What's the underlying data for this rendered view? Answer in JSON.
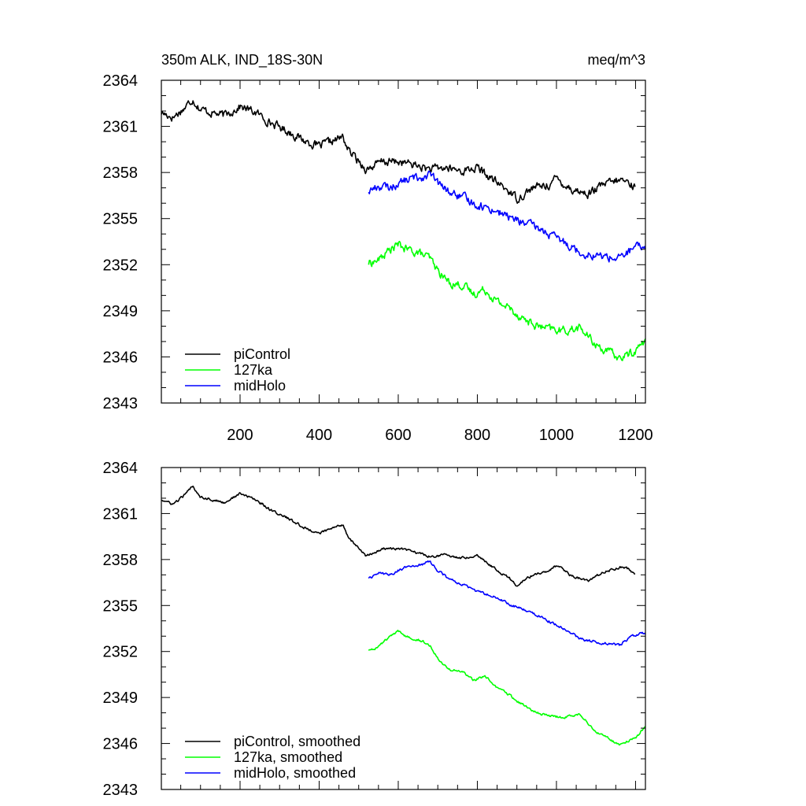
{
  "figure": {
    "left_title": "350m ALK, IND_18S-30N",
    "right_title": "meq/m^3"
  },
  "colors": {
    "piControl": "#000000",
    "127ka": "#00ff00",
    "midHolo": "#0000ff",
    "axis": "#000000"
  },
  "chart_data": [
    {
      "type": "line",
      "title": "350m ALK, IND_18S-30N",
      "units": "meq/m^3",
      "xlim": [
        1,
        1225
      ],
      "ylim": [
        2343,
        2364
      ],
      "xticks": [
        200,
        400,
        600,
        800,
        1000,
        1200
      ],
      "xtick_labels": [
        "200",
        "400",
        "600",
        "800",
        "1000",
        "1200"
      ],
      "yticks": [
        2343,
        2346,
        2349,
        2352,
        2355,
        2358,
        2361,
        2364
      ],
      "ytick_labels": [
        "2343",
        "2346",
        "2349",
        "2352",
        "2355",
        "2358",
        "2361",
        "2364"
      ],
      "legend_position": "lower-left",
      "noise": 0.45,
      "series": [
        {
          "name": "piControl",
          "color": "#000000",
          "x": [
            1,
            30,
            60,
            80,
            100,
            130,
            160,
            200,
            240,
            280,
            320,
            360,
            400,
            420,
            440,
            460,
            475,
            490,
            520,
            560,
            600,
            640,
            680,
            720,
            760,
            800,
            840,
            880,
            900,
            940,
            980,
            1000,
            1040,
            1080,
            1120,
            1160,
            1180,
            1200
          ],
          "y": [
            2361.9,
            2361.6,
            2362.2,
            2362.8,
            2362.1,
            2361.9,
            2361.7,
            2362.3,
            2361.9,
            2361.2,
            2360.7,
            2360.1,
            2359.7,
            2359.9,
            2360.1,
            2360.3,
            2359.4,
            2359.0,
            2358.2,
            2358.7,
            2358.7,
            2358.5,
            2358.2,
            2358.3,
            2358.1,
            2358.3,
            2357.5,
            2356.8,
            2356.3,
            2357.0,
            2357.2,
            2357.6,
            2356.9,
            2356.6,
            2357.2,
            2357.5,
            2357.4,
            2357.0
          ]
        },
        {
          "name": "127ka",
          "color": "#00ff00",
          "x": [
            525,
            550,
            580,
            600,
            620,
            650,
            680,
            700,
            730,
            760,
            790,
            820,
            850,
            880,
            900,
            940,
            980,
            1020,
            1060,
            1080,
            1100,
            1140,
            1160,
            1200,
            1225
          ],
          "y": [
            2352.1,
            2352.3,
            2353.0,
            2353.3,
            2353.0,
            2352.8,
            2352.4,
            2351.6,
            2350.8,
            2350.7,
            2350.1,
            2350.4,
            2349.6,
            2349.2,
            2348.8,
            2348.1,
            2347.8,
            2347.7,
            2347.9,
            2347.3,
            2346.8,
            2346.2,
            2345.9,
            2346.4,
            2347.1
          ]
        },
        {
          "name": "midHolo",
          "color": "#0000ff",
          "x": [
            525,
            550,
            580,
            600,
            630,
            660,
            680,
            700,
            730,
            760,
            800,
            840,
            880,
            920,
            960,
            1000,
            1040,
            1060,
            1080,
            1100,
            1130,
            1160,
            1180,
            1200,
            1225
          ],
          "y": [
            2356.8,
            2357.1,
            2357.0,
            2357.3,
            2357.6,
            2357.7,
            2357.9,
            2357.3,
            2356.7,
            2356.4,
            2355.9,
            2355.6,
            2355.1,
            2354.7,
            2354.3,
            2353.7,
            2353.2,
            2352.8,
            2352.7,
            2352.6,
            2352.5,
            2352.4,
            2352.8,
            2353.1,
            2353.2
          ]
        }
      ]
    },
    {
      "type": "line",
      "title": "",
      "xlim": [
        1,
        1225
      ],
      "ylim": [
        2343,
        2364
      ],
      "xticks": [
        200,
        400,
        600,
        800,
        1000,
        1200
      ],
      "xtick_labels": [],
      "yticks": [
        2343,
        2346,
        2349,
        2352,
        2355,
        2358,
        2361,
        2364
      ],
      "ytick_labels": [
        "2343",
        "2346",
        "2349",
        "2352",
        "2355",
        "2358",
        "2361",
        "2364"
      ],
      "legend_position": "lower-left",
      "noise": 0.14,
      "series": [
        {
          "name": "piControl, smoothed",
          "color": "#000000",
          "x": [
            1,
            30,
            60,
            80,
            100,
            130,
            160,
            200,
            240,
            280,
            320,
            360,
            400,
            420,
            440,
            460,
            475,
            490,
            520,
            560,
            600,
            640,
            680,
            720,
            760,
            800,
            840,
            880,
            900,
            940,
            980,
            1000,
            1040,
            1080,
            1120,
            1160,
            1180,
            1200
          ],
          "y": [
            2361.9,
            2361.6,
            2362.2,
            2362.8,
            2362.1,
            2361.9,
            2361.7,
            2362.3,
            2361.9,
            2361.2,
            2360.7,
            2360.1,
            2359.7,
            2359.9,
            2360.1,
            2360.3,
            2359.4,
            2359.0,
            2358.2,
            2358.7,
            2358.7,
            2358.5,
            2358.2,
            2358.3,
            2358.1,
            2358.3,
            2357.5,
            2356.8,
            2356.3,
            2357.0,
            2357.2,
            2357.6,
            2356.9,
            2356.6,
            2357.2,
            2357.5,
            2357.4,
            2357.0
          ]
        },
        {
          "name": "127ka, smoothed",
          "color": "#00ff00",
          "x": [
            525,
            550,
            580,
            600,
            620,
            650,
            680,
            700,
            730,
            760,
            790,
            820,
            850,
            880,
            900,
            940,
            980,
            1020,
            1060,
            1080,
            1100,
            1140,
            1160,
            1200,
            1225
          ],
          "y": [
            2352.1,
            2352.3,
            2353.0,
            2353.3,
            2353.0,
            2352.8,
            2352.4,
            2351.6,
            2350.8,
            2350.7,
            2350.1,
            2350.4,
            2349.6,
            2349.2,
            2348.8,
            2348.1,
            2347.8,
            2347.7,
            2347.9,
            2347.3,
            2346.8,
            2346.2,
            2345.9,
            2346.4,
            2347.1
          ]
        },
        {
          "name": "midHolo, smoothed",
          "color": "#0000ff",
          "x": [
            525,
            550,
            580,
            600,
            630,
            660,
            680,
            700,
            730,
            760,
            800,
            840,
            880,
            920,
            960,
            1000,
            1040,
            1060,
            1080,
            1100,
            1130,
            1160,
            1180,
            1200,
            1225
          ],
          "y": [
            2356.8,
            2357.1,
            2357.0,
            2357.3,
            2357.6,
            2357.7,
            2357.9,
            2357.3,
            2356.7,
            2356.4,
            2355.9,
            2355.6,
            2355.1,
            2354.7,
            2354.3,
            2353.7,
            2353.2,
            2352.8,
            2352.7,
            2352.6,
            2352.5,
            2352.4,
            2352.8,
            2353.1,
            2353.2
          ]
        }
      ]
    }
  ]
}
